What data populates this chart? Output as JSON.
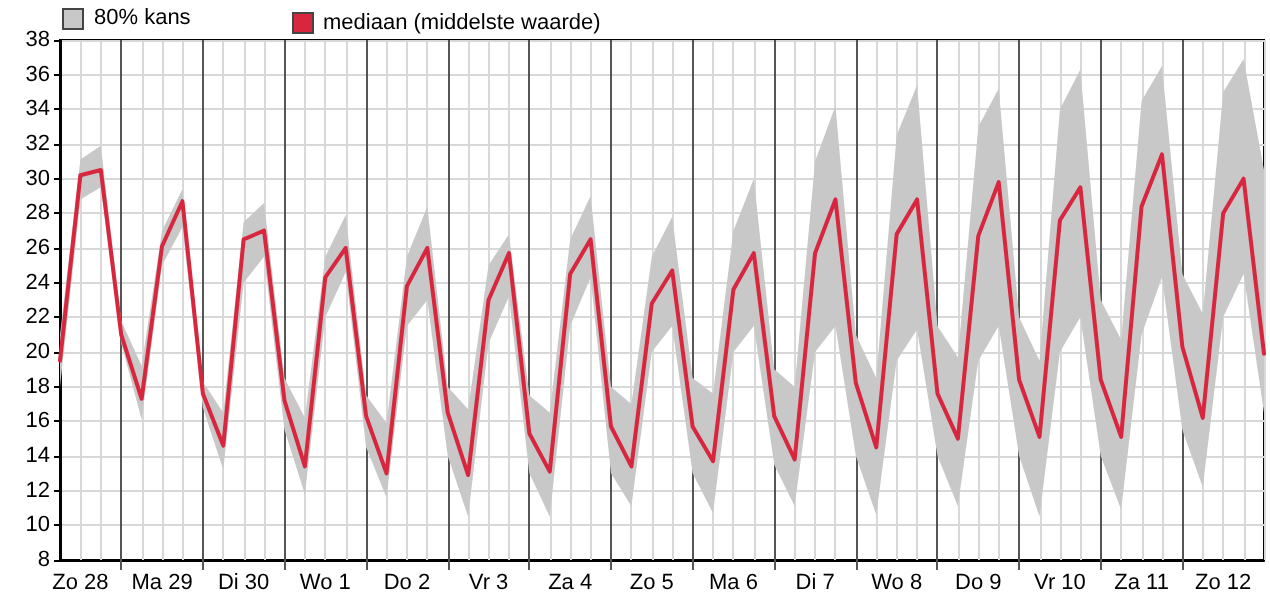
{
  "chart_data": {
    "type": "line",
    "categories": [
      null,
      "Zo 28",
      null,
      null,
      null,
      "Ma 29",
      null,
      null,
      null,
      "Di 30",
      null,
      null,
      null,
      "Wo 1",
      null,
      null,
      null,
      "Do 2",
      null,
      null,
      null,
      "Vr 3",
      null,
      null,
      null,
      "Za 4",
      null,
      null,
      null,
      "Zo 5",
      null,
      null,
      null,
      "Ma 6",
      null,
      null,
      null,
      "Di 7",
      null,
      null,
      null,
      "Wo 8",
      null,
      null,
      null,
      "Do 9",
      null,
      null,
      null,
      "Vr 10",
      null,
      null,
      null,
      "Za 11",
      null,
      null,
      null,
      "Zo 12",
      null,
      null
    ],
    "series": [
      {
        "name": "mediaan (middelste waarde)",
        "color": "#d7263d",
        "upper": [
          21,
          31.1,
          31.9,
          21.8,
          19.2,
          27,
          29.4,
          18.3,
          16.5,
          27.5,
          28.6,
          18.5,
          16.2,
          25.5,
          27.9,
          17.5,
          15.9,
          25.5,
          28.4,
          18,
          16.7,
          25,
          26.8,
          17.5,
          16.5,
          26.5,
          29,
          18,
          17,
          25.5,
          27.8,
          18.5,
          17.6,
          27,
          30,
          19,
          18,
          31,
          34.2,
          21,
          18.5,
          32.5,
          35.4,
          21.5,
          19.7,
          33,
          35.2,
          22,
          19.5,
          34,
          36.3,
          23,
          20.7,
          34.5,
          36.5,
          24.5,
          22.2,
          35,
          36.9,
          30.5
        ],
        "lower": [
          18,
          28.8,
          29.5,
          20.5,
          16.1,
          25,
          27.2,
          16.8,
          13.2,
          24,
          25.5,
          15.5,
          11.8,
          22,
          24.6,
          14.5,
          11.6,
          21.5,
          23,
          14,
          10.5,
          20.5,
          23.2,
          13,
          10.5,
          21.5,
          24.3,
          13,
          11.1,
          20,
          21.5,
          13,
          10.7,
          20,
          21.5,
          13.5,
          11.1,
          20,
          21.5,
          14,
          10.6,
          19.5,
          21.3,
          14,
          11.1,
          19.5,
          21.5,
          14,
          10.5,
          20,
          22,
          14,
          10.9,
          21,
          24.3,
          15.5,
          12.2,
          22,
          24.5,
          16.5
        ],
        "values": [
          19.5,
          30.2,
          30.5,
          21,
          17.3,
          26.1,
          28.7,
          17.6,
          14.6,
          26.5,
          27,
          17.2,
          13.4,
          24.3,
          26,
          16.3,
          13,
          23.8,
          26,
          16.5,
          12.9,
          23,
          25.7,
          15.3,
          13.1,
          24.5,
          26.5,
          15.7,
          13.4,
          22.8,
          24.7,
          15.7,
          13.7,
          23.6,
          25.7,
          16.3,
          13.8,
          25.7,
          28.8,
          18.2,
          14.5,
          26.8,
          28.8,
          17.6,
          15,
          26.7,
          29.8,
          18.4,
          15.1,
          27.6,
          29.5,
          18.4,
          15.1,
          28.4,
          31.4,
          20.3,
          16.2,
          28,
          30,
          19.9
        ]
      }
    ],
    "ylim": [
      8,
      38
    ],
    "yticks": [
      8,
      10,
      12,
      14,
      16,
      18,
      20,
      22,
      24,
      26,
      28,
      30,
      32,
      34,
      36,
      38
    ],
    "annotations": [
      "80% kans"
    ],
    "grid": true,
    "legend": "top left",
    "marker": "none"
  }
}
